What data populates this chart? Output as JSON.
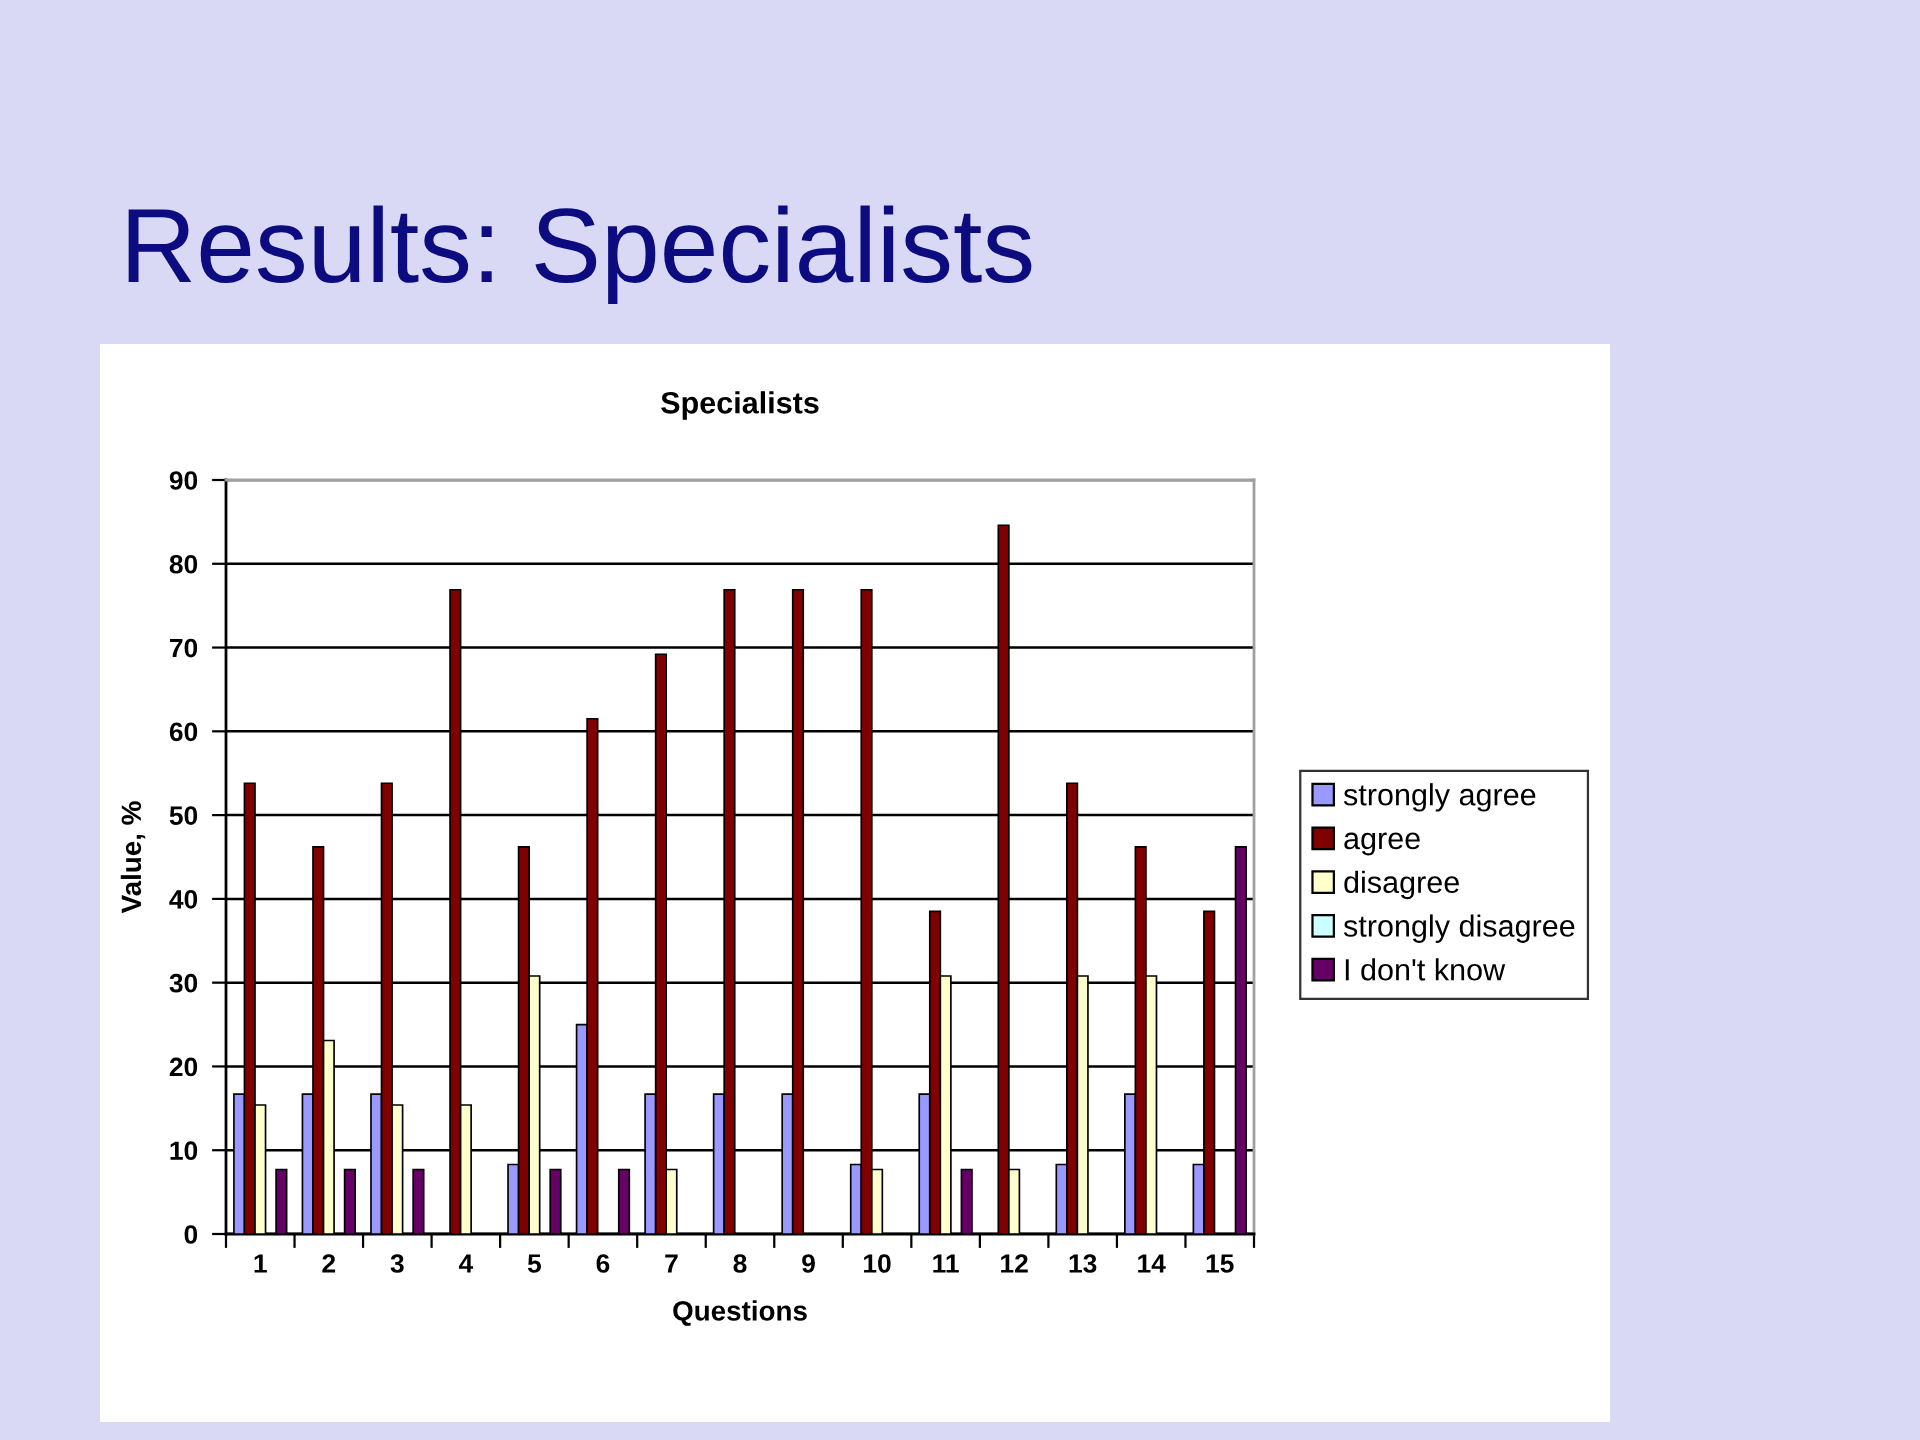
{
  "chart_data": {
    "type": "bar",
    "title": "Results: Specialists",
    "subtitle": "Specialists",
    "xlabel": "Questions",
    "ylabel": "Value, %",
    "categories": [
      "1",
      "2",
      "3",
      "4",
      "5",
      "6",
      "7",
      "8",
      "9",
      "10",
      "11",
      "12",
      "13",
      "14",
      "15"
    ],
    "series": [
      {
        "name": "strongly agree",
        "color": "#9999ff",
        "values": [
          16.7,
          16.7,
          16.7,
          null,
          8.3,
          25,
          16.7,
          16.7,
          16.7,
          8.3,
          16.7,
          null,
          8.3,
          16.7,
          8.3
        ]
      },
      {
        "name": "agree",
        "color": "#800000",
        "values": [
          53.8,
          46.2,
          53.8,
          76.9,
          46.2,
          61.5,
          69.2,
          76.9,
          76.9,
          76.9,
          38.5,
          84.6,
          53.8,
          46.2,
          38.5
        ]
      },
      {
        "name": "disagree",
        "color": "#ffffcc",
        "values": [
          15.4,
          23.1,
          15.4,
          15.4,
          30.8,
          null,
          7.7,
          null,
          null,
          7.7,
          30.8,
          7.7,
          30.8,
          30.8,
          null
        ]
      },
      {
        "name": "strongly disagree",
        "color": "#ccffff",
        "values": [
          null,
          null,
          null,
          null,
          null,
          null,
          null,
          null,
          null,
          null,
          null,
          null,
          null,
          null,
          null
        ]
      },
      {
        "name": "I don't know",
        "color": "#660066",
        "values": [
          7.7,
          7.7,
          7.7,
          null,
          7.7,
          7.7,
          null,
          null,
          null,
          null,
          7.7,
          null,
          null,
          null,
          46.2
        ]
      }
    ],
    "ylim": [
      0,
      90
    ],
    "yticks": [
      0,
      10,
      20,
      30,
      40,
      50,
      60,
      70,
      80,
      90
    ],
    "grid": "y",
    "legend": "right"
  }
}
